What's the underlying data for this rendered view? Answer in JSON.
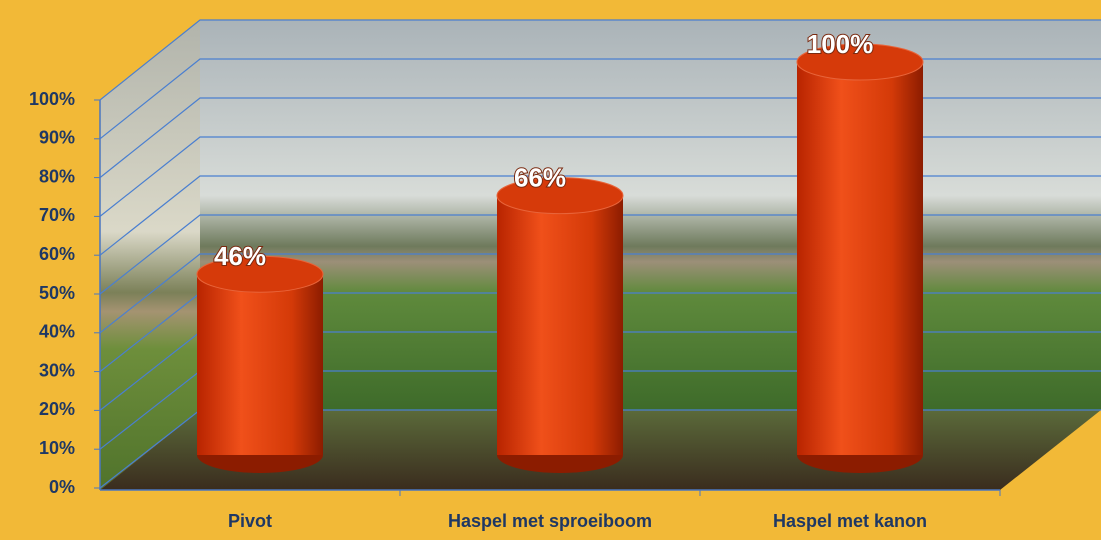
{
  "chart_data": {
    "type": "bar",
    "categories": [
      "Pivot",
      "Haspel met sproeiboom",
      "Haspel met kanon"
    ],
    "values": [
      46,
      66,
      100
    ],
    "value_labels": [
      "46%",
      "66%",
      "100%"
    ],
    "color": "#d63a0a",
    "ylim": [
      0,
      100
    ],
    "yticks": [
      {
        "value": 0,
        "label": "0%"
      },
      {
        "value": 10,
        "label": "10%"
      },
      {
        "value": 20,
        "label": "20%"
      },
      {
        "value": 30,
        "label": "30%"
      },
      {
        "value": 40,
        "label": "40%"
      },
      {
        "value": 50,
        "label": "50%"
      },
      {
        "value": 60,
        "label": "60%"
      },
      {
        "value": 70,
        "label": "70%"
      },
      {
        "value": 80,
        "label": "80%"
      },
      {
        "value": 90,
        "label": "90%"
      },
      {
        "value": 100,
        "label": "100%"
      }
    ],
    "grid": true
  }
}
